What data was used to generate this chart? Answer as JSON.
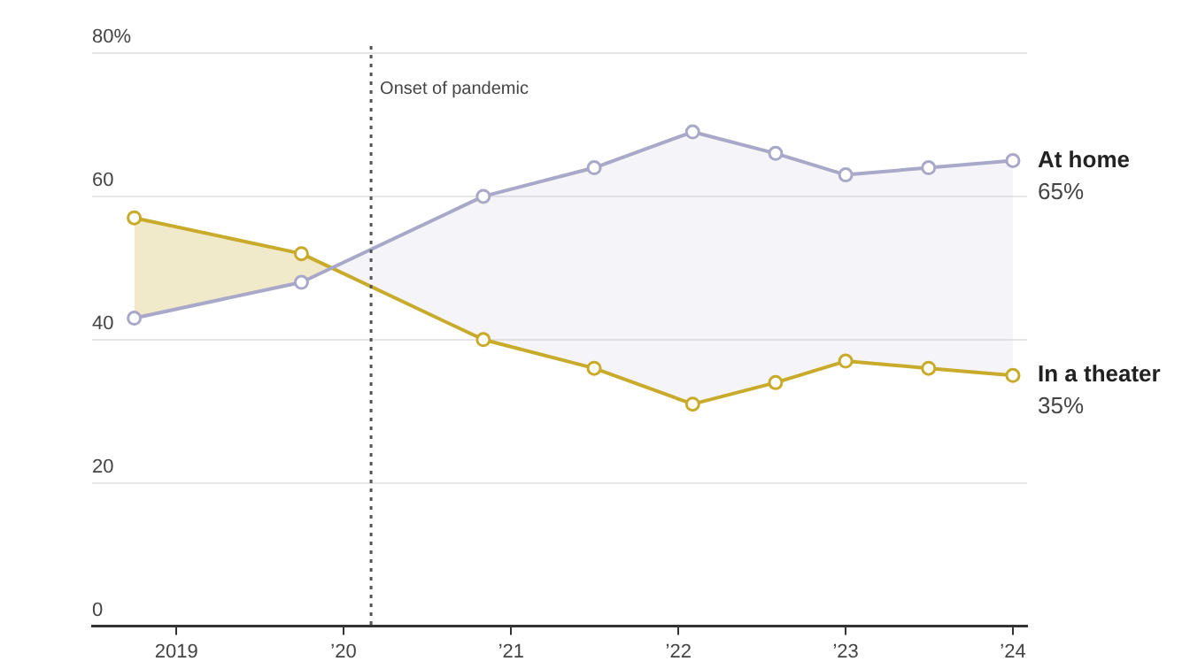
{
  "chart_data": {
    "type": "line",
    "x": [
      "2018-10",
      "2019-10",
      "2020-11",
      "2021-07",
      "2022-02",
      "2022-08",
      "2023-01",
      "2023-07",
      "2024-01"
    ],
    "series": [
      {
        "name": "At home",
        "color": "#a9a8c8",
        "values": [
          43,
          48,
          60,
          64,
          69,
          66,
          63,
          64,
          65
        ],
        "lower": [
          57,
          52,
          40,
          36,
          31,
          34,
          37,
          36,
          35
        ],
        "upper": [
          43,
          48,
          60,
          64,
          69,
          66,
          63,
          64,
          65
        ],
        "value_labels": [
          null,
          null,
          null,
          null,
          null,
          null,
          null,
          null,
          "65%"
        ]
      },
      {
        "name": "In a theater",
        "color": "#c9ab2c",
        "values": [
          57,
          52,
          40,
          36,
          31,
          34,
          37,
          36,
          35
        ],
        "value_labels": [
          null,
          null,
          null,
          null,
          null,
          null,
          null,
          null,
          "35%"
        ]
      }
    ],
    "xlim": [
      "2018-07",
      "2024-02"
    ],
    "xticks": [
      {
        "value": "2019",
        "label": "2019"
      },
      {
        "value": "2020",
        "label": "’20"
      },
      {
        "value": "2021",
        "label": "’21"
      },
      {
        "value": "2022",
        "label": "’22"
      },
      {
        "value": "2023",
        "label": "’23"
      },
      {
        "value": "2024",
        "label": "’24"
      }
    ],
    "ylim": [
      0,
      80
    ],
    "yticks": [
      0,
      20,
      40,
      60,
      {
        "value": 80,
        "label": "80%"
      }
    ],
    "ref_lines": [
      {
        "axis": "x",
        "value": "2020-03",
        "label": "Onset of pandemic",
        "line_style": "dotted",
        "color": "#555555"
      }
    ],
    "grid": "y",
    "legend": false,
    "marker": "circle",
    "line_style": "solid"
  }
}
